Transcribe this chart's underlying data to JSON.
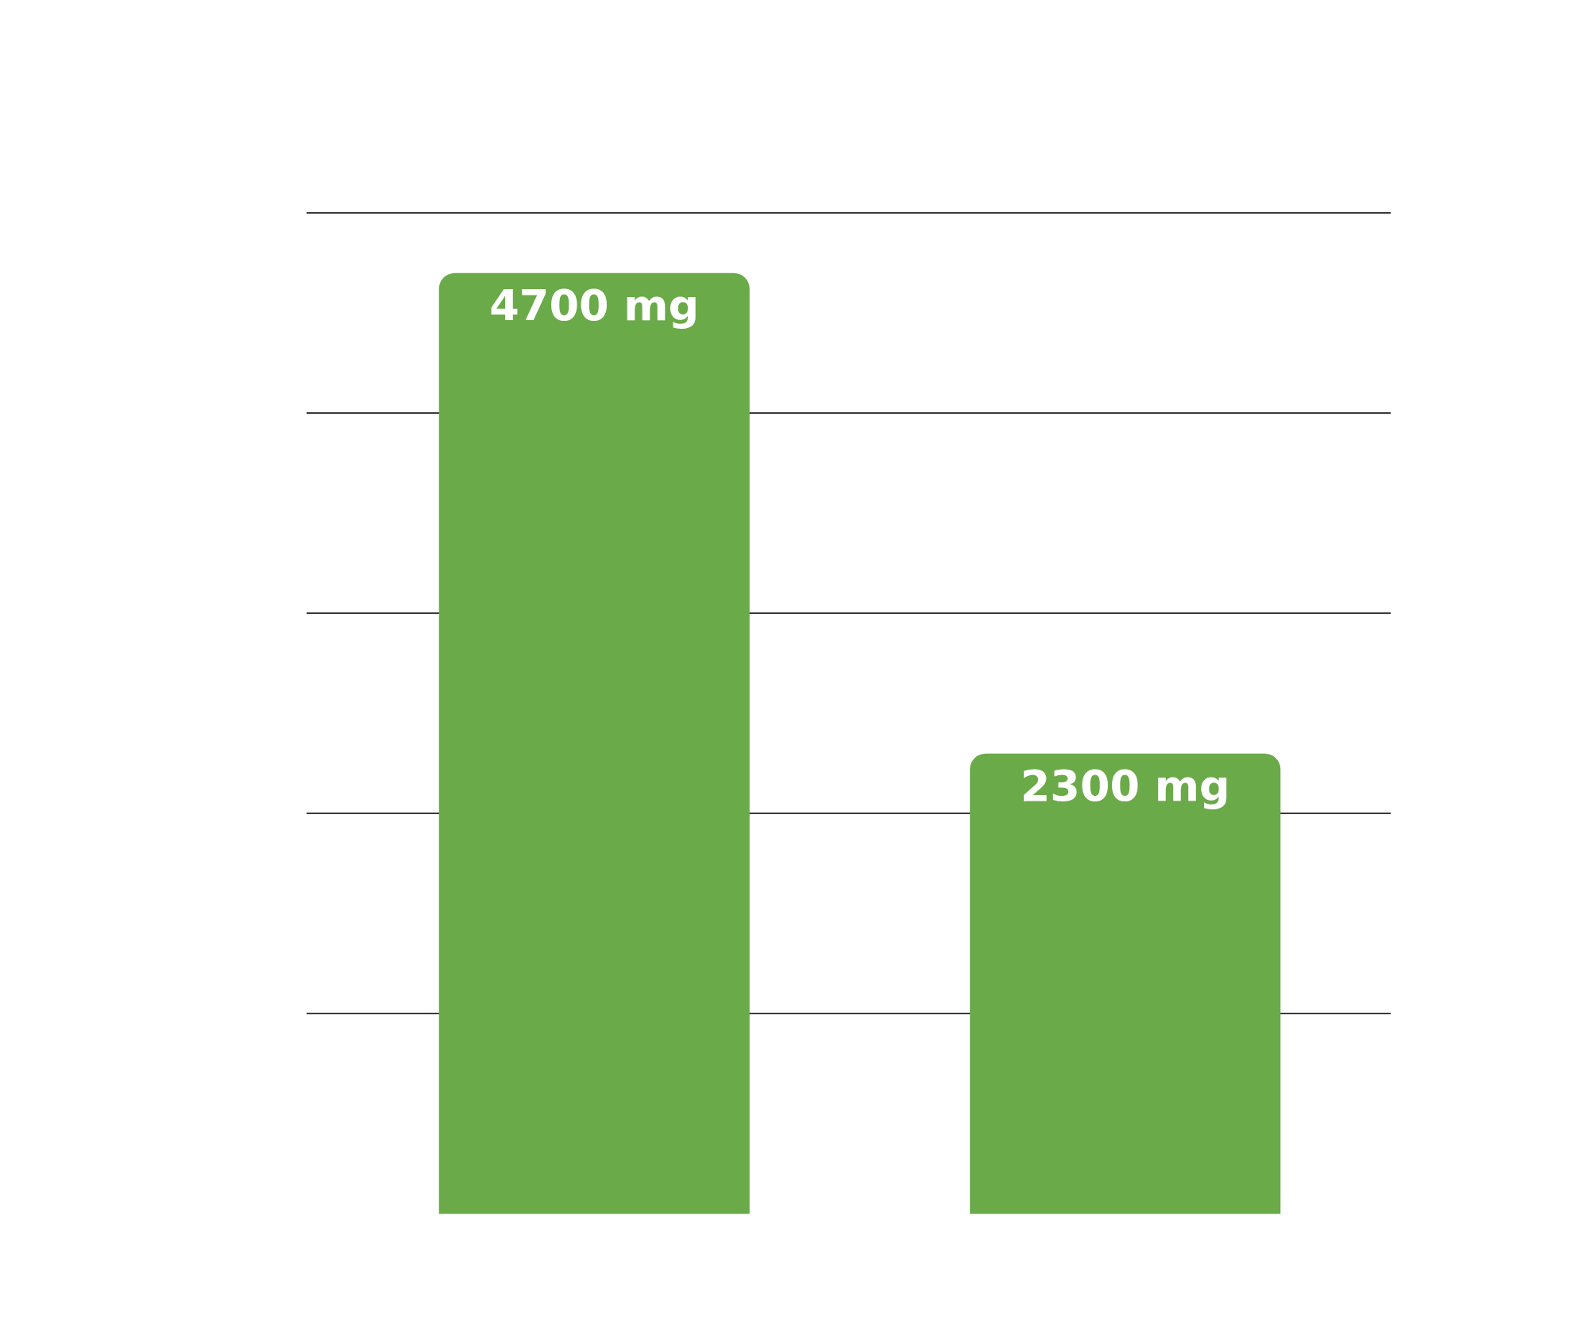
{
  "chart_data": {
    "type": "bar",
    "categories": [
      null,
      null
    ],
    "values": [
      4700,
      2300
    ],
    "value_labels": [
      "4700 mg",
      "2300 mg"
    ],
    "color": "#6aaa48",
    "ylim": [
      0,
      5000
    ],
    "yticks": [
      {
        "value": 1000,
        "label": null
      },
      {
        "value": 2000,
        "label": null
      },
      {
        "value": 3000,
        "label": null
      },
      {
        "value": 4000,
        "label": null
      },
      {
        "value": 5000,
        "label": null
      }
    ],
    "grid": "y",
    "legend": false
  }
}
